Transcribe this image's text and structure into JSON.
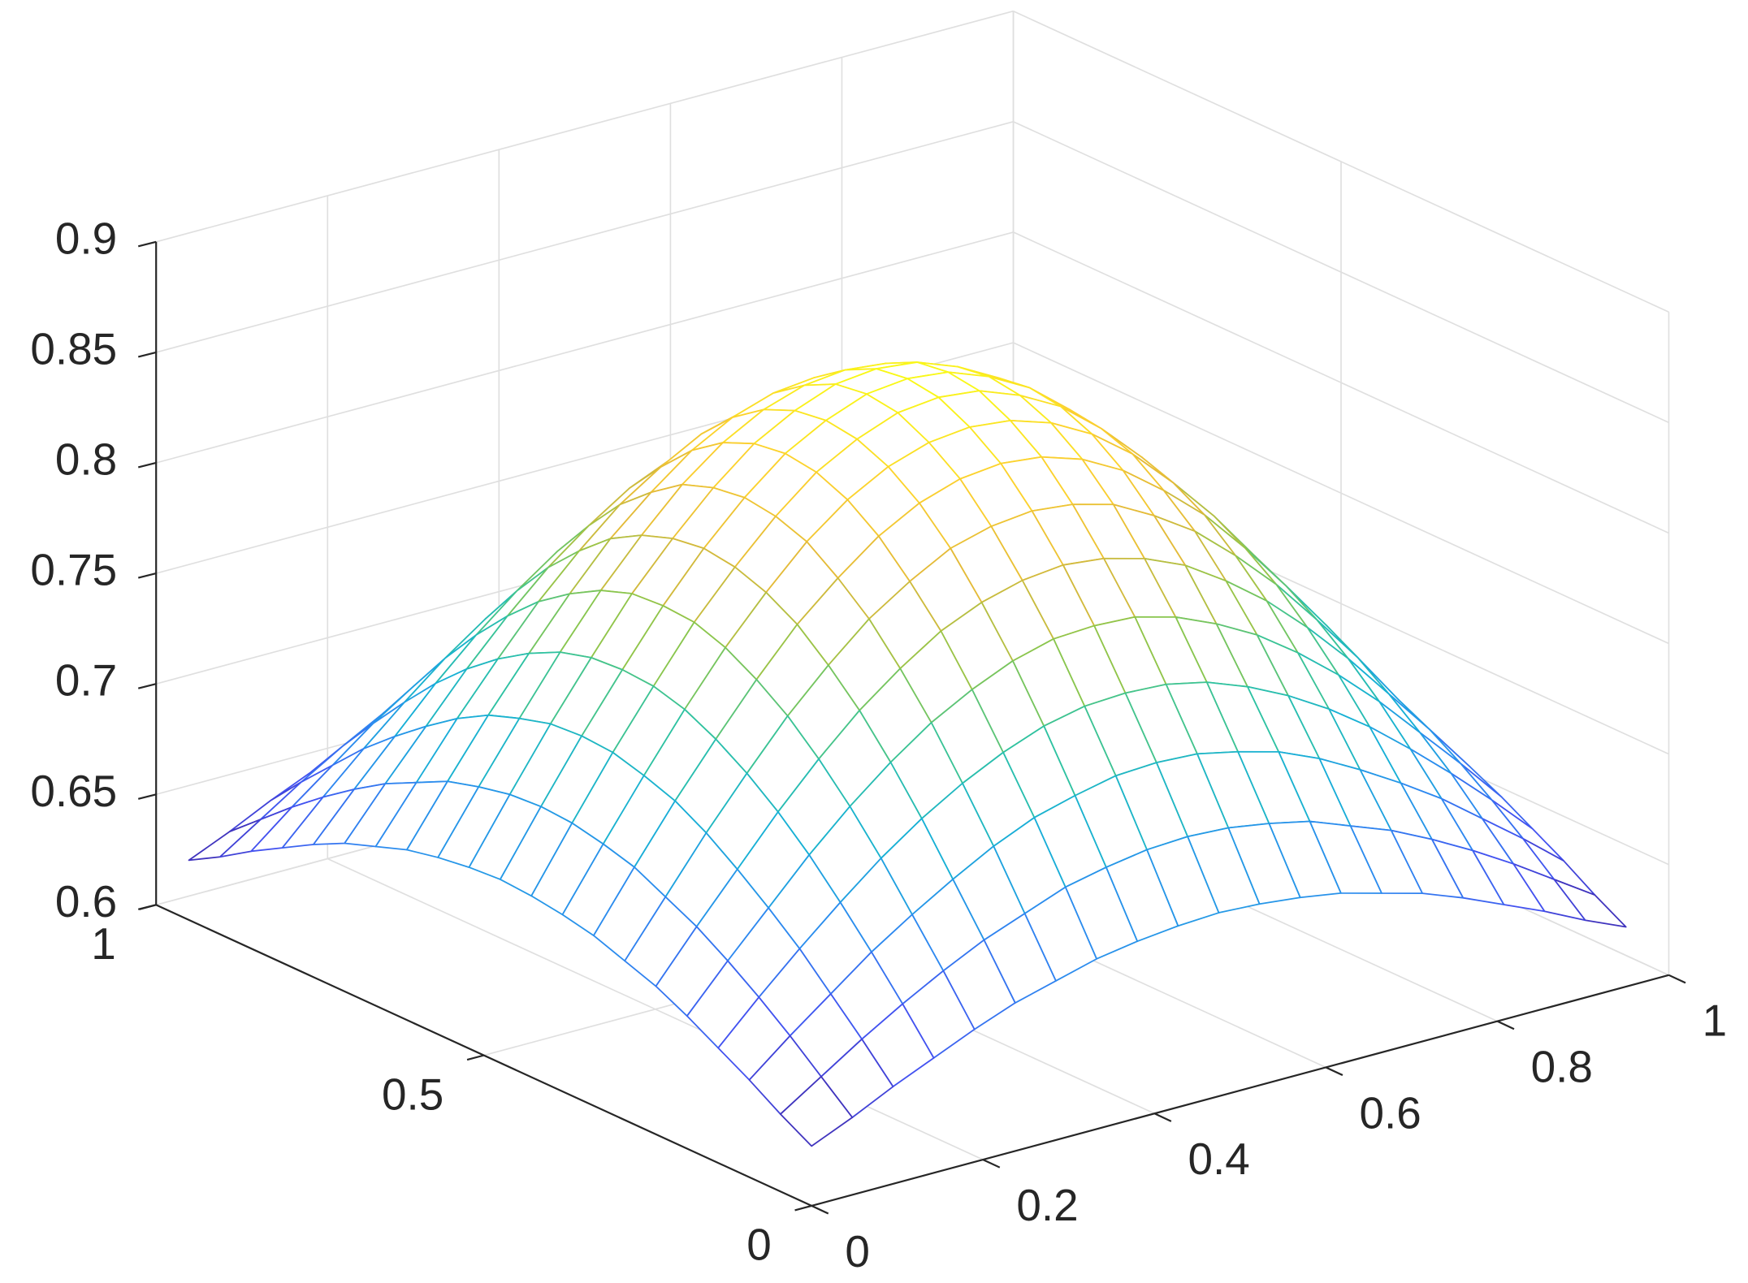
{
  "chart_data": {
    "type": "mesh",
    "x": [
      0,
      0.0475,
      0.095,
      0.1425,
      0.19,
      0.2375,
      0.285,
      0.3325,
      0.38,
      0.4275,
      0.475,
      0.5225,
      0.57,
      0.6175,
      0.665,
      0.7125,
      0.76,
      0.8075,
      0.855,
      0.9025,
      0.95
    ],
    "y": [
      0,
      0.0475,
      0.095,
      0.1425,
      0.19,
      0.2375,
      0.285,
      0.3325,
      0.38,
      0.4275,
      0.475,
      0.5225,
      0.57,
      0.6175,
      0.665,
      0.7125,
      0.76,
      0.8075,
      0.855,
      0.9025,
      0.95
    ],
    "z": [
      [
        0.627,
        0.635,
        0.644,
        0.652,
        0.66,
        0.667,
        0.672,
        0.677,
        0.68,
        0.682,
        0.683,
        0.682,
        0.68,
        0.677,
        0.672,
        0.667,
        0.66,
        0.652,
        0.644,
        0.635,
        0.627
      ],
      [
        0.635,
        0.647,
        0.659,
        0.67,
        0.68,
        0.689,
        0.696,
        0.703,
        0.707,
        0.71,
        0.711,
        0.71,
        0.707,
        0.703,
        0.696,
        0.689,
        0.68,
        0.67,
        0.659,
        0.647,
        0.635
      ],
      [
        0.644,
        0.659,
        0.673,
        0.687,
        0.699,
        0.71,
        0.72,
        0.728,
        0.733,
        0.737,
        0.738,
        0.737,
        0.733,
        0.728,
        0.72,
        0.71,
        0.699,
        0.687,
        0.673,
        0.659,
        0.644
      ],
      [
        0.652,
        0.67,
        0.687,
        0.703,
        0.718,
        0.731,
        0.742,
        0.751,
        0.758,
        0.762,
        0.763,
        0.762,
        0.758,
        0.751,
        0.742,
        0.731,
        0.718,
        0.703,
        0.687,
        0.67,
        0.652
      ],
      [
        0.66,
        0.68,
        0.699,
        0.718,
        0.735,
        0.75,
        0.763,
        0.773,
        0.781,
        0.786,
        0.787,
        0.786,
        0.781,
        0.773,
        0.763,
        0.75,
        0.735,
        0.718,
        0.699,
        0.68,
        0.66
      ],
      [
        0.667,
        0.689,
        0.71,
        0.731,
        0.75,
        0.767,
        0.781,
        0.793,
        0.801,
        0.806,
        0.808,
        0.806,
        0.801,
        0.793,
        0.781,
        0.767,
        0.75,
        0.731,
        0.71,
        0.689,
        0.667
      ],
      [
        0.672,
        0.696,
        0.72,
        0.742,
        0.763,
        0.781,
        0.797,
        0.809,
        0.819,
        0.824,
        0.826,
        0.824,
        0.819,
        0.809,
        0.797,
        0.781,
        0.763,
        0.742,
        0.72,
        0.696,
        0.672
      ],
      [
        0.677,
        0.703,
        0.728,
        0.751,
        0.773,
        0.793,
        0.809,
        0.823,
        0.833,
        0.839,
        0.841,
        0.839,
        0.833,
        0.823,
        0.809,
        0.793,
        0.773,
        0.751,
        0.728,
        0.703,
        0.677
      ],
      [
        0.68,
        0.707,
        0.733,
        0.758,
        0.781,
        0.801,
        0.819,
        0.833,
        0.843,
        0.849,
        0.851,
        0.849,
        0.843,
        0.833,
        0.819,
        0.801,
        0.781,
        0.758,
        0.733,
        0.707,
        0.68
      ],
      [
        0.682,
        0.71,
        0.737,
        0.762,
        0.786,
        0.806,
        0.824,
        0.839,
        0.849,
        0.856,
        0.858,
        0.856,
        0.849,
        0.839,
        0.824,
        0.806,
        0.786,
        0.762,
        0.737,
        0.71,
        0.682
      ],
      [
        0.683,
        0.711,
        0.738,
        0.763,
        0.787,
        0.808,
        0.826,
        0.841,
        0.851,
        0.858,
        0.86,
        0.858,
        0.851,
        0.841,
        0.826,
        0.808,
        0.787,
        0.763,
        0.738,
        0.711,
        0.683
      ],
      [
        0.682,
        0.71,
        0.737,
        0.762,
        0.786,
        0.806,
        0.824,
        0.839,
        0.849,
        0.856,
        0.858,
        0.856,
        0.849,
        0.839,
        0.824,
        0.806,
        0.786,
        0.762,
        0.737,
        0.71,
        0.682
      ],
      [
        0.68,
        0.707,
        0.733,
        0.758,
        0.781,
        0.801,
        0.819,
        0.833,
        0.843,
        0.849,
        0.851,
        0.849,
        0.843,
        0.833,
        0.819,
        0.801,
        0.781,
        0.758,
        0.733,
        0.707,
        0.68
      ],
      [
        0.677,
        0.703,
        0.728,
        0.751,
        0.773,
        0.793,
        0.809,
        0.823,
        0.833,
        0.839,
        0.841,
        0.839,
        0.833,
        0.823,
        0.809,
        0.793,
        0.773,
        0.751,
        0.728,
        0.703,
        0.677
      ],
      [
        0.672,
        0.696,
        0.72,
        0.742,
        0.763,
        0.781,
        0.797,
        0.809,
        0.819,
        0.824,
        0.826,
        0.824,
        0.819,
        0.809,
        0.797,
        0.781,
        0.763,
        0.742,
        0.72,
        0.696,
        0.672
      ],
      [
        0.667,
        0.689,
        0.71,
        0.731,
        0.75,
        0.767,
        0.781,
        0.793,
        0.801,
        0.806,
        0.808,
        0.806,
        0.801,
        0.793,
        0.781,
        0.767,
        0.75,
        0.731,
        0.71,
        0.689,
        0.667
      ],
      [
        0.66,
        0.68,
        0.699,
        0.718,
        0.735,
        0.75,
        0.763,
        0.773,
        0.781,
        0.786,
        0.787,
        0.786,
        0.781,
        0.773,
        0.763,
        0.75,
        0.735,
        0.718,
        0.699,
        0.68,
        0.66
      ],
      [
        0.652,
        0.67,
        0.687,
        0.703,
        0.718,
        0.731,
        0.742,
        0.751,
        0.758,
        0.762,
        0.763,
        0.762,
        0.758,
        0.751,
        0.742,
        0.731,
        0.718,
        0.703,
        0.687,
        0.67,
        0.652
      ],
      [
        0.644,
        0.659,
        0.673,
        0.687,
        0.699,
        0.71,
        0.72,
        0.728,
        0.733,
        0.737,
        0.738,
        0.737,
        0.733,
        0.728,
        0.72,
        0.71,
        0.699,
        0.687,
        0.673,
        0.659,
        0.644
      ],
      [
        0.635,
        0.647,
        0.659,
        0.67,
        0.68,
        0.689,
        0.696,
        0.703,
        0.707,
        0.71,
        0.711,
        0.71,
        0.707,
        0.703,
        0.696,
        0.689,
        0.68,
        0.67,
        0.659,
        0.647,
        0.635
      ],
      [
        0.627,
        0.635,
        0.644,
        0.652,
        0.66,
        0.667,
        0.672,
        0.677,
        0.68,
        0.682,
        0.683,
        0.682,
        0.68,
        0.677,
        0.672,
        0.667,
        0.66,
        0.652,
        0.644,
        0.635,
        0.627
      ]
    ],
    "xlim": [
      0,
      1
    ],
    "ylim": [
      0,
      1
    ],
    "zlim": [
      0.6,
      0.9
    ],
    "xticks": [
      0,
      0.2,
      0.4,
      0.6,
      0.8,
      1
    ],
    "yticks": [
      0,
      0.5,
      1
    ],
    "zticks": [
      0.6,
      0.65,
      0.7,
      0.75,
      0.8,
      0.85,
      0.9
    ],
    "grid": true,
    "colormap": [
      "#3e26a8",
      "#4352f0",
      "#2d8af0",
      "#17b0d6",
      "#2fc3a0",
      "#8cc64b",
      "#e0b83a",
      "#fcd02f",
      "#f9fb15"
    ]
  }
}
